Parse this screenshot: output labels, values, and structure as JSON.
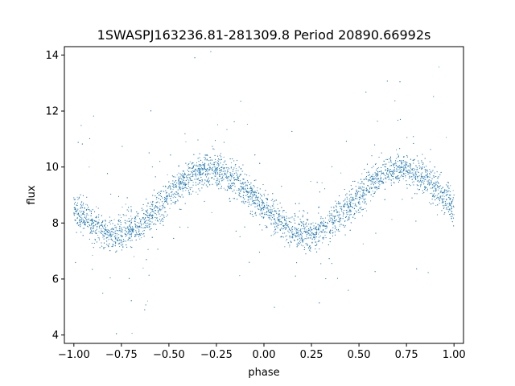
{
  "chart_data": {
    "type": "scatter",
    "title": "1SWASPJ163236.81-281309.8 Period 20890.66992s",
    "xlabel": "phase",
    "ylabel": "flux",
    "xlim": [
      -1.05,
      1.05
    ],
    "ylim": [
      3.7,
      14.3
    ],
    "xticks": [
      -1.0,
      -0.75,
      -0.5,
      -0.25,
      0.0,
      0.25,
      0.5,
      0.75,
      1.0
    ],
    "xtick_labels": [
      "−1.00",
      "−0.75",
      "−0.50",
      "−0.25",
      "0.00",
      "0.25",
      "0.50",
      "0.75",
      "1.00"
    ],
    "yticks": [
      4,
      6,
      8,
      10,
      12,
      14
    ],
    "ytick_labels": [
      "4",
      "6",
      "8",
      "10",
      "12",
      "14"
    ],
    "grid": false,
    "point_color": "#1f77b4",
    "model": {
      "mean_flux": 8.75,
      "amplitude": 1.15,
      "minimum_phase": 0.22,
      "typical_scatter": 0.3
    },
    "series": [
      {
        "x": [
          -1.0,
          -0.95,
          -0.9,
          -0.85,
          -0.8,
          -0.75,
          -0.7,
          -0.65,
          -0.6,
          -0.55,
          -0.5,
          -0.45,
          -0.4,
          -0.35,
          -0.3,
          -0.25,
          -0.2,
          -0.15,
          -0.1,
          -0.05,
          0.0,
          0.05,
          0.1,
          0.15,
          0.2,
          0.25,
          0.3,
          0.35,
          0.4,
          0.45,
          0.5,
          0.55,
          0.6,
          0.65,
          0.7,
          0.75,
          0.8,
          0.85,
          0.9,
          0.95,
          1.0
        ],
        "y": [
          8.9,
          8.4,
          8.0,
          7.7,
          7.55,
          7.55,
          7.7,
          8.1,
          8.6,
          9.0,
          9.3,
          9.5,
          9.7,
          9.85,
          9.9,
          9.85,
          9.75,
          9.55,
          9.3,
          9.0,
          8.7,
          8.3,
          7.9,
          7.6,
          7.5,
          7.55,
          7.7,
          8.1,
          8.6,
          9.0,
          9.3,
          9.5,
          9.7,
          9.85,
          9.9,
          9.85,
          9.75,
          9.55,
          9.35,
          9.15,
          9.0
        ]
      }
    ]
  }
}
